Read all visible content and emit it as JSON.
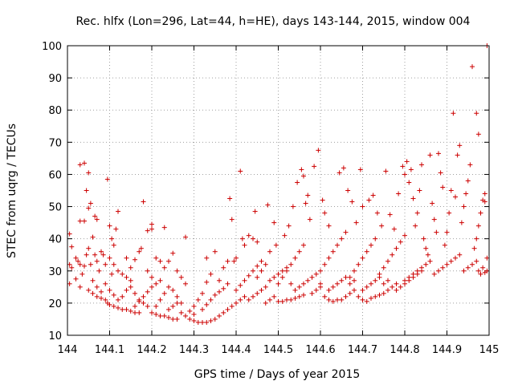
{
  "chart_data": {
    "type": "scatter",
    "title": "Rec. hlfx (Lon=296, Lat=44, h=HE), days 143-144, 2015, window 004",
    "xlabel": "GPS time / Days of year 2015",
    "ylabel": "STEC from uqrg / TECUs",
    "xlim": [
      144,
      145
    ],
    "ylim": [
      10,
      100
    ],
    "xticks": [
      "144",
      "144.1",
      "144.2",
      "144.3",
      "144.4",
      "144.5",
      "144.6",
      "144.7",
      "144.8",
      "144.9",
      "145"
    ],
    "yticks": [
      "10",
      "20",
      "30",
      "40",
      "50",
      "60",
      "70",
      "80",
      "90",
      "100"
    ],
    "grid": true,
    "marker": "plus",
    "color": "#cc0000",
    "points": [
      [
        144.005,
        41.5
      ],
      [
        144.01,
        37.5
      ],
      [
        144.005,
        32
      ],
      [
        144.01,
        31
      ],
      [
        144.005,
        26
      ],
      [
        144.03,
        63
      ],
      [
        144.04,
        63.5
      ],
      [
        144.05,
        60.5
      ],
      [
        144.045,
        55
      ],
      [
        144.03,
        45.5
      ],
      [
        144.04,
        45.5
      ],
      [
        144.05,
        49.5
      ],
      [
        144.055,
        51
      ],
      [
        144.065,
        47
      ],
      [
        144.07,
        46
      ],
      [
        144.06,
        40.5
      ],
      [
        144.05,
        37
      ],
      [
        144.045,
        35
      ],
      [
        144.02,
        34
      ],
      [
        144.025,
        33
      ],
      [
        144.03,
        32
      ],
      [
        144.04,
        31.5
      ],
      [
        144.035,
        29
      ],
      [
        144.02,
        27.5
      ],
      [
        144.03,
        25
      ],
      [
        144.05,
        24
      ],
      [
        144.06,
        23
      ],
      [
        144.07,
        22
      ],
      [
        144.08,
        21.5
      ],
      [
        144.09,
        21
      ],
      [
        144.095,
        20
      ],
      [
        144.1,
        19.5
      ],
      [
        144.055,
        32
      ],
      [
        144.065,
        35
      ],
      [
        144.07,
        33
      ],
      [
        144.075,
        30
      ],
      [
        144.08,
        36
      ],
      [
        144.085,
        35
      ],
      [
        144.09,
        32
      ],
      [
        144.095,
        58.5
      ],
      [
        144.1,
        44
      ],
      [
        144.105,
        40
      ],
      [
        144.11,
        38
      ],
      [
        144.12,
        48.5
      ],
      [
        144.115,
        43
      ],
      [
        144.1,
        34
      ],
      [
        144.11,
        32
      ],
      [
        144.12,
        30
      ],
      [
        144.13,
        29
      ],
      [
        144.14,
        28
      ],
      [
        144.15,
        27
      ],
      [
        144.105,
        29
      ],
      [
        144.11,
        19
      ],
      [
        144.12,
        18.5
      ],
      [
        144.13,
        18
      ],
      [
        144.14,
        18
      ],
      [
        144.15,
        17.5
      ],
      [
        144.16,
        17
      ],
      [
        144.17,
        17
      ],
      [
        144.13,
        22
      ],
      [
        144.14,
        24
      ],
      [
        144.15,
        25
      ],
      [
        144.16,
        23
      ],
      [
        144.17,
        21
      ],
      [
        144.18,
        20
      ],
      [
        144.19,
        19
      ],
      [
        144.14,
        34
      ],
      [
        144.15,
        31
      ],
      [
        144.16,
        33.5
      ],
      [
        144.17,
        36
      ],
      [
        144.18,
        51.5
      ],
      [
        144.175,
        37
      ],
      [
        144.19,
        42.5
      ],
      [
        144.2,
        44.5
      ],
      [
        144.2,
        43
      ],
      [
        144.21,
        34
      ],
      [
        144.22,
        33
      ],
      [
        144.23,
        43.5
      ],
      [
        144.19,
        30
      ],
      [
        144.2,
        28
      ],
      [
        144.2,
        17
      ],
      [
        144.21,
        16.5
      ],
      [
        144.22,
        16
      ],
      [
        144.23,
        16
      ],
      [
        144.24,
        15.5
      ],
      [
        144.25,
        15
      ],
      [
        144.26,
        15
      ],
      [
        144.21,
        19
      ],
      [
        144.22,
        21
      ],
      [
        144.23,
        23
      ],
      [
        144.24,
        25
      ],
      [
        144.25,
        24
      ],
      [
        144.26,
        22
      ],
      [
        144.27,
        20
      ],
      [
        144.23,
        31
      ],
      [
        144.24,
        33
      ],
      [
        144.25,
        35.5
      ],
      [
        144.26,
        30
      ],
      [
        144.27,
        28
      ],
      [
        144.28,
        40.5
      ],
      [
        144.28,
        26
      ],
      [
        144.29,
        15
      ],
      [
        144.3,
        14.5
      ],
      [
        144.31,
        14
      ],
      [
        144.32,
        14
      ],
      [
        144.33,
        14
      ],
      [
        144.34,
        14.5
      ],
      [
        144.35,
        15
      ],
      [
        144.3,
        19
      ],
      [
        144.31,
        21
      ],
      [
        144.32,
        23
      ],
      [
        144.33,
        26.5
      ],
      [
        144.34,
        29
      ],
      [
        144.35,
        36
      ],
      [
        144.33,
        34
      ],
      [
        144.36,
        16
      ],
      [
        144.37,
        17
      ],
      [
        144.38,
        18
      ],
      [
        144.39,
        19
      ],
      [
        144.4,
        20
      ],
      [
        144.41,
        21
      ],
      [
        144.42,
        22
      ],
      [
        144.36,
        27
      ],
      [
        144.37,
        31
      ],
      [
        144.38,
        33
      ],
      [
        144.385,
        52.5
      ],
      [
        144.39,
        46
      ],
      [
        144.395,
        33
      ],
      [
        144.4,
        34
      ],
      [
        144.41,
        61
      ],
      [
        144.415,
        40
      ],
      [
        144.42,
        38
      ],
      [
        144.43,
        41
      ],
      [
        144.44,
        40
      ],
      [
        144.445,
        48.5
      ],
      [
        144.45,
        39
      ],
      [
        144.43,
        21
      ],
      [
        144.44,
        22
      ],
      [
        144.45,
        23
      ],
      [
        144.46,
        24
      ],
      [
        144.47,
        25
      ],
      [
        144.48,
        21
      ],
      [
        144.49,
        22
      ],
      [
        144.45,
        28
      ],
      [
        144.46,
        30
      ],
      [
        144.47,
        32
      ],
      [
        144.475,
        50.5
      ],
      [
        144.48,
        36
      ],
      [
        144.49,
        45
      ],
      [
        144.495,
        38
      ],
      [
        144.5,
        20.5
      ],
      [
        144.51,
        20.5
      ],
      [
        144.52,
        21
      ],
      [
        144.53,
        21
      ],
      [
        144.54,
        21.5
      ],
      [
        144.55,
        22
      ],
      [
        144.56,
        22.5
      ],
      [
        144.5,
        26
      ],
      [
        144.51,
        28
      ],
      [
        144.52,
        30
      ],
      [
        144.53,
        32
      ],
      [
        144.54,
        34
      ],
      [
        144.55,
        36
      ],
      [
        144.56,
        38
      ],
      [
        144.515,
        41
      ],
      [
        144.525,
        44
      ],
      [
        144.535,
        50
      ],
      [
        144.545,
        57.5
      ],
      [
        144.555,
        61.5
      ],
      [
        144.56,
        59.5
      ],
      [
        144.57,
        53.5
      ],
      [
        144.565,
        51
      ],
      [
        144.575,
        46
      ],
      [
        144.585,
        62.5
      ],
      [
        144.595,
        67.5
      ],
      [
        144.605,
        52
      ],
      [
        144.61,
        48
      ],
      [
        144.62,
        44
      ],
      [
        144.58,
        23
      ],
      [
        144.59,
        24
      ],
      [
        144.6,
        25
      ],
      [
        144.61,
        22
      ],
      [
        144.62,
        21
      ],
      [
        144.63,
        20.5
      ],
      [
        144.64,
        21
      ],
      [
        144.6,
        30
      ],
      [
        144.61,
        32
      ],
      [
        144.62,
        34
      ],
      [
        144.63,
        36
      ],
      [
        144.64,
        38
      ],
      [
        144.65,
        40
      ],
      [
        144.66,
        42
      ],
      [
        144.645,
        60.5
      ],
      [
        144.655,
        62
      ],
      [
        144.665,
        55
      ],
      [
        144.675,
        51.5
      ],
      [
        144.685,
        45
      ],
      [
        144.695,
        61.5
      ],
      [
        144.7,
        50
      ],
      [
        144.65,
        21
      ],
      [
        144.66,
        22
      ],
      [
        144.67,
        23
      ],
      [
        144.68,
        24
      ],
      [
        144.69,
        22
      ],
      [
        144.7,
        21
      ],
      [
        144.71,
        20.5
      ],
      [
        144.67,
        28
      ],
      [
        144.68,
        30
      ],
      [
        144.69,
        32
      ],
      [
        144.7,
        34
      ],
      [
        144.71,
        36
      ],
      [
        144.72,
        38
      ],
      [
        144.73,
        40
      ],
      [
        144.715,
        52
      ],
      [
        144.725,
        53.5
      ],
      [
        144.735,
        48
      ],
      [
        144.745,
        44
      ],
      [
        144.755,
        61
      ],
      [
        144.765,
        47.5
      ],
      [
        144.775,
        43
      ],
      [
        144.72,
        21.5
      ],
      [
        144.73,
        22
      ],
      [
        144.74,
        22.5
      ],
      [
        144.75,
        23
      ],
      [
        144.76,
        24
      ],
      [
        144.77,
        25
      ],
      [
        144.78,
        26
      ],
      [
        144.74,
        29
      ],
      [
        144.75,
        31
      ],
      [
        144.76,
        33
      ],
      [
        144.77,
        35
      ],
      [
        144.78,
        37
      ],
      [
        144.79,
        39
      ],
      [
        144.8,
        41
      ],
      [
        144.785,
        54
      ],
      [
        144.795,
        62.5
      ],
      [
        144.8,
        60
      ],
      [
        144.805,
        64
      ],
      [
        144.81,
        57.5
      ],
      [
        144.815,
        61.5
      ],
      [
        144.82,
        52.5
      ],
      [
        144.8,
        27
      ],
      [
        144.81,
        28
      ],
      [
        144.82,
        29
      ],
      [
        144.83,
        30
      ],
      [
        144.84,
        31
      ],
      [
        144.85,
        32
      ],
      [
        144.86,
        33
      ],
      [
        144.825,
        44
      ],
      [
        144.83,
        48
      ],
      [
        144.835,
        55
      ],
      [
        144.84,
        63
      ],
      [
        144.845,
        40
      ],
      [
        144.85,
        37
      ],
      [
        144.855,
        35
      ],
      [
        144.86,
        66
      ],
      [
        144.865,
        51
      ],
      [
        144.87,
        46
      ],
      [
        144.875,
        42
      ],
      [
        144.88,
        66.5
      ],
      [
        144.885,
        60.5
      ],
      [
        144.89,
        56
      ],
      [
        144.87,
        29
      ],
      [
        144.88,
        30
      ],
      [
        144.89,
        31
      ],
      [
        144.9,
        32
      ],
      [
        144.91,
        33
      ],
      [
        144.92,
        34
      ],
      [
        144.93,
        35
      ],
      [
        144.895,
        38
      ],
      [
        144.9,
        42
      ],
      [
        144.905,
        48
      ],
      [
        144.91,
        55
      ],
      [
        144.915,
        79
      ],
      [
        144.92,
        53
      ],
      [
        144.925,
        66
      ],
      [
        144.93,
        69
      ],
      [
        144.935,
        45
      ],
      [
        144.94,
        50
      ],
      [
        144.945,
        54
      ],
      [
        144.95,
        58
      ],
      [
        144.955,
        63
      ],
      [
        144.96,
        93.5
      ],
      [
        144.94,
        30
      ],
      [
        144.95,
        31
      ],
      [
        144.96,
        32
      ],
      [
        144.97,
        33
      ],
      [
        144.975,
        30
      ],
      [
        144.98,
        29
      ],
      [
        144.985,
        31
      ],
      [
        144.965,
        37
      ],
      [
        144.97,
        40
      ],
      [
        144.975,
        44
      ],
      [
        144.98,
        48
      ],
      [
        144.985,
        52
      ],
      [
        144.99,
        54
      ],
      [
        144.995,
        100
      ],
      [
        144.97,
        79
      ],
      [
        144.975,
        72.5
      ],
      [
        144.99,
        51.5
      ],
      [
        144.995,
        34
      ],
      [
        144.99,
        29.5
      ],
      [
        144.995,
        30
      ],
      [
        144.06,
        27
      ],
      [
        144.07,
        25
      ],
      [
        144.08,
        23.5
      ],
      [
        144.09,
        26
      ],
      [
        144.1,
        24
      ],
      [
        144.11,
        22.5
      ],
      [
        144.12,
        21
      ],
      [
        144.16,
        19
      ],
      [
        144.17,
        20.5
      ],
      [
        144.18,
        22
      ],
      [
        144.19,
        23.5
      ],
      [
        144.2,
        25
      ],
      [
        144.21,
        26
      ],
      [
        144.22,
        27
      ],
      [
        144.24,
        18
      ],
      [
        144.25,
        19
      ],
      [
        144.26,
        20
      ],
      [
        144.27,
        17
      ],
      [
        144.28,
        16
      ],
      [
        144.29,
        17.5
      ],
      [
        144.3,
        16.5
      ],
      [
        144.32,
        18
      ],
      [
        144.33,
        19.5
      ],
      [
        144.34,
        21
      ],
      [
        144.35,
        22.5
      ],
      [
        144.36,
        23.5
      ],
      [
        144.37,
        24.5
      ],
      [
        144.38,
        26
      ],
      [
        144.4,
        24
      ],
      [
        144.41,
        25.5
      ],
      [
        144.42,
        27
      ],
      [
        144.43,
        28.5
      ],
      [
        144.44,
        30
      ],
      [
        144.45,
        31.5
      ],
      [
        144.46,
        33
      ],
      [
        144.47,
        20
      ],
      [
        144.48,
        27
      ],
      [
        144.49,
        28
      ],
      [
        144.5,
        29
      ],
      [
        144.51,
        30
      ],
      [
        144.52,
        31
      ],
      [
        144.53,
        26
      ],
      [
        144.54,
        24
      ],
      [
        144.55,
        25
      ],
      [
        144.56,
        26
      ],
      [
        144.57,
        27
      ],
      [
        144.58,
        28
      ],
      [
        144.59,
        29
      ],
      [
        144.6,
        26
      ],
      [
        144.62,
        24
      ],
      [
        144.63,
        25
      ],
      [
        144.64,
        26
      ],
      [
        144.65,
        27
      ],
      [
        144.66,
        28
      ],
      [
        144.67,
        26
      ],
      [
        144.68,
        27
      ],
      [
        144.7,
        24
      ],
      [
        144.71,
        25
      ],
      [
        144.72,
        26
      ],
      [
        144.73,
        27
      ],
      [
        144.74,
        28
      ],
      [
        144.75,
        26
      ],
      [
        144.76,
        27
      ],
      [
        144.78,
        24
      ],
      [
        144.79,
        25
      ],
      [
        144.8,
        26
      ],
      [
        144.81,
        27
      ],
      [
        144.82,
        28
      ],
      [
        144.83,
        29
      ],
      [
        144.84,
        30
      ]
    ]
  }
}
